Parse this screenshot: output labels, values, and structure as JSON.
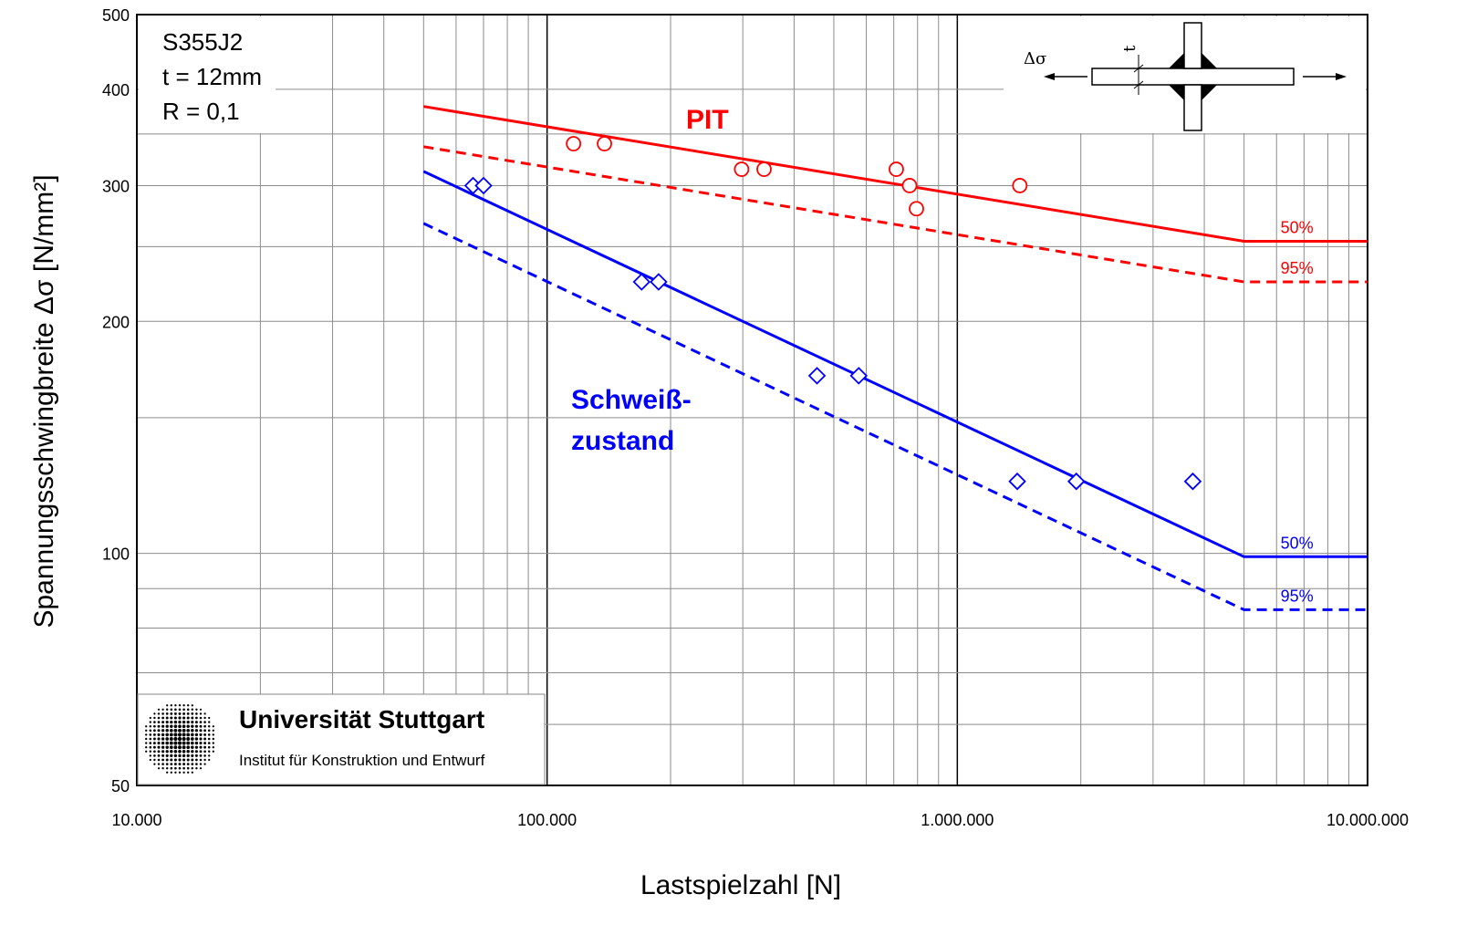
{
  "chart_data": {
    "type": "scatter",
    "xlabel": "Lastspielzahl [N]",
    "ylabel": "Spannungsschwingbreite Δσ  [N/mm²]",
    "xscale": "log",
    "yscale": "log",
    "xlim": [
      10000,
      10000000
    ],
    "ylim": [
      50,
      500
    ],
    "grid": true,
    "x_ticks": [
      {
        "value": 10000,
        "label": "10.000"
      },
      {
        "value": 100000,
        "label": "100.000"
      },
      {
        "value": 1000000,
        "label": "1.000.000"
      },
      {
        "value": 10000000,
        "label": "10.000.000"
      }
    ],
    "y_ticks": [
      {
        "value": 50,
        "label": "50"
      },
      {
        "value": 100,
        "label": "100"
      },
      {
        "value": 200,
        "label": "200"
      },
      {
        "value": 300,
        "label": "300"
      },
      {
        "value": 400,
        "label": "400"
      },
      {
        "value": 500,
        "label": "500"
      }
    ],
    "specimen_info": [
      "S355J2",
      "t = 12mm",
      "R = 0,1"
    ],
    "series_labels": {
      "pit": "PIT",
      "weld_line1": "Schweiß-",
      "weld_line2": "zustand"
    },
    "series": [
      {
        "group": "pit",
        "kind": "points",
        "marker": "circle",
        "color": "#ff0000",
        "points": [
          [
            116000,
            340
          ],
          [
            138000,
            340
          ],
          [
            298000,
            315
          ],
          [
            338000,
            315
          ],
          [
            710000,
            315
          ],
          [
            765000,
            300
          ],
          [
            795000,
            280
          ],
          [
            1420000,
            300
          ]
        ]
      },
      {
        "group": "weld",
        "kind": "points",
        "marker": "diamond",
        "color": "#0000ff",
        "points": [
          [
            66000,
            300
          ],
          [
            70000,
            300
          ],
          [
            170000,
            225
          ],
          [
            187000,
            225
          ],
          [
            455000,
            170
          ],
          [
            575000,
            170
          ],
          [
            1400000,
            124
          ],
          [
            1950000,
            124
          ],
          [
            3750000,
            124
          ]
        ]
      },
      {
        "group": "pit",
        "kind": "line",
        "style": "solid",
        "color": "#ff0000",
        "label": "50%",
        "points": [
          [
            50000,
            380
          ],
          [
            5000000,
            254
          ],
          [
            10000000,
            254
          ]
        ]
      },
      {
        "group": "pit",
        "kind": "line",
        "style": "dashed",
        "color": "#ff0000",
        "label": "95%",
        "points": [
          [
            50000,
            337
          ],
          [
            5000000,
            225
          ],
          [
            10000000,
            225
          ]
        ]
      },
      {
        "group": "weld",
        "kind": "line",
        "style": "solid",
        "color": "#0000ff",
        "label": "50%",
        "points": [
          [
            50000,
            313
          ],
          [
            5000000,
            99
          ],
          [
            10000000,
            99
          ]
        ]
      },
      {
        "group": "weld",
        "kind": "line",
        "style": "dashed",
        "color": "#0000ff",
        "label": "95%",
        "points": [
          [
            50000,
            268
          ],
          [
            5000000,
            84.5
          ],
          [
            10000000,
            84.5
          ]
        ]
      }
    ]
  },
  "inset": {
    "stress_symbol": "Δσ",
    "thickness_symbol": "t"
  },
  "logo": {
    "title": "Universität Stuttgart",
    "subtitle": "Institut für Konstruktion und Entwurf"
  }
}
